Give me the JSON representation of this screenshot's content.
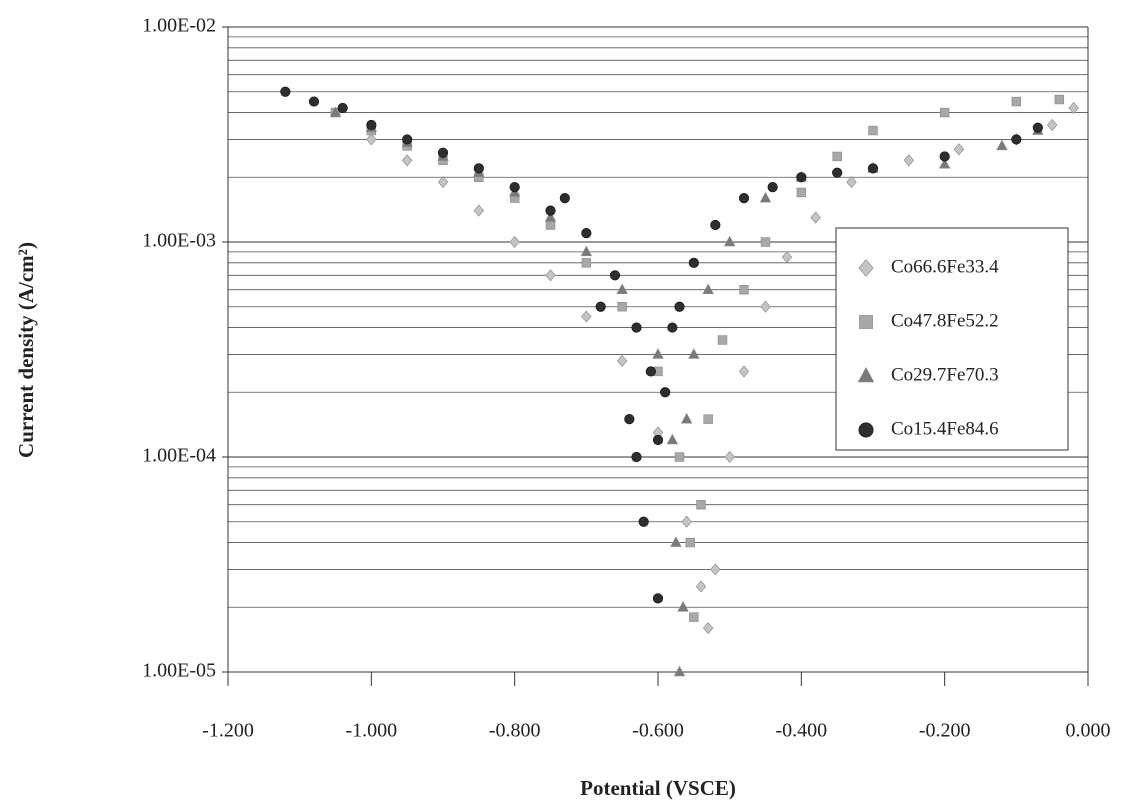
{
  "chart_data": {
    "type": "scatter",
    "x_label": "Potential (VSCE)",
    "y_label": "Current density (A/cm²)",
    "log_y": true,
    "grid": true,
    "legend": "right",
    "xlim": [
      -1.2,
      0.0
    ],
    "xticks": [
      {
        "value": -1.2,
        "label": "-1.200"
      },
      {
        "value": -1.0,
        "label": "-1.000"
      },
      {
        "value": -0.8,
        "label": "-0.800"
      },
      {
        "value": -0.6,
        "label": "-0.600"
      },
      {
        "value": -0.4,
        "label": "-0.400"
      },
      {
        "value": -0.2,
        "label": "-0.200"
      },
      {
        "value": 0.0,
        "label": "0.000"
      }
    ],
    "ylim": [
      1e-05,
      0.01
    ],
    "yticks": [
      {
        "value": 1e-05,
        "label": "1.00E-05"
      },
      {
        "value": 0.0001,
        "label": "1.00E-04"
      },
      {
        "value": 0.001,
        "label": "1.00E-03"
      },
      {
        "value": 0.01,
        "label": "1.00E-02"
      }
    ],
    "yminor": [
      2e-05,
      3e-05,
      4e-05,
      5e-05,
      6e-05,
      7e-05,
      8e-05,
      9e-05,
      0.0002,
      0.0003,
      0.0004,
      0.0005,
      0.0006,
      0.0007,
      0.0008,
      0.0009,
      0.002,
      0.003,
      0.004,
      0.005,
      0.006,
      0.007,
      0.008,
      0.009
    ],
    "series": [
      {
        "name": "Co66.6Fe33.4",
        "color": "#c4c4c4",
        "marker": "diamond",
        "x": [
          -1.0,
          -0.95,
          -0.9,
          -0.85,
          -0.8,
          -0.75,
          -0.7,
          -0.65,
          -0.6,
          -0.56,
          -0.54,
          -0.53,
          -0.52,
          -0.5,
          -0.48,
          -0.45,
          -0.42,
          -0.38,
          -0.33,
          -0.25,
          -0.18,
          -0.1,
          -0.05,
          -0.02
        ],
        "values": [
          0.003,
          0.0024,
          0.0019,
          0.0014,
          0.001,
          0.0007,
          0.00045,
          0.00028,
          0.00013,
          5e-05,
          2.5e-05,
          1.6e-05,
          3e-05,
          0.0001,
          0.00025,
          0.0005,
          0.00085,
          0.0013,
          0.0019,
          0.0024,
          0.0027,
          0.003,
          0.0035,
          0.0042
        ]
      },
      {
        "name": "Co47.8Fe52.2",
        "color": "#a8a8a8",
        "marker": "square",
        "x": [
          -1.05,
          -1.0,
          -0.95,
          -0.9,
          -0.85,
          -0.8,
          -0.75,
          -0.7,
          -0.65,
          -0.6,
          -0.57,
          -0.555,
          -0.55,
          -0.54,
          -0.53,
          -0.51,
          -0.48,
          -0.45,
          -0.4,
          -0.35,
          -0.3,
          -0.2,
          -0.1,
          -0.04
        ],
        "values": [
          0.004,
          0.0033,
          0.0028,
          0.0024,
          0.002,
          0.0016,
          0.0012,
          0.0008,
          0.0005,
          0.00025,
          0.0001,
          4e-05,
          1.8e-05,
          6e-05,
          0.00015,
          0.00035,
          0.0006,
          0.001,
          0.0017,
          0.0025,
          0.0033,
          0.004,
          0.0045,
          0.0046
        ]
      },
      {
        "name": "Co29.7Fe70.3",
        "color": "#7a7a7a",
        "marker": "triangle",
        "x": [
          -1.05,
          -1.0,
          -0.95,
          -0.9,
          -0.85,
          -0.8,
          -0.75,
          -0.7,
          -0.65,
          -0.6,
          -0.58,
          -0.575,
          -0.57,
          -0.565,
          -0.56,
          -0.55,
          -0.53,
          -0.5,
          -0.45,
          -0.4,
          -0.3,
          -0.2,
          -0.12,
          -0.07
        ],
        "values": [
          0.004,
          0.0034,
          0.0029,
          0.0025,
          0.0021,
          0.0017,
          0.0013,
          0.0009,
          0.0006,
          0.0003,
          0.00012,
          4e-05,
          1e-05,
          2e-05,
          0.00015,
          0.0003,
          0.0006,
          0.001,
          0.0016,
          0.002,
          0.0022,
          0.0023,
          0.0028,
          0.0033
        ]
      },
      {
        "name": "Co15.4Fe84.6",
        "color": "#2e2e2e",
        "marker": "circle",
        "x": [
          -1.12,
          -1.08,
          -1.04,
          -1.0,
          -0.95,
          -0.9,
          -0.85,
          -0.8,
          -0.75,
          -0.7,
          -0.66,
          -0.63,
          -0.61,
          -0.6,
          -0.59,
          -0.58,
          -0.57,
          -0.55,
          -0.52,
          -0.48,
          -0.44,
          -0.4,
          -0.35,
          -0.3,
          -0.2,
          -0.1,
          -0.07,
          -0.73,
          -0.68,
          -0.64,
          -0.63,
          -0.62,
          -0.6
        ],
        "values": [
          0.005,
          0.0045,
          0.0042,
          0.0035,
          0.003,
          0.0026,
          0.0022,
          0.0018,
          0.0014,
          0.0011,
          0.0007,
          0.0004,
          0.00025,
          0.00012,
          0.0002,
          0.0004,
          0.0005,
          0.0008,
          0.0012,
          0.0016,
          0.0018,
          0.002,
          0.0021,
          0.0022,
          0.0025,
          0.003,
          0.0034,
          0.0016,
          0.0005,
          0.00015,
          0.0001,
          5e-05,
          2.2e-05
        ]
      }
    ]
  }
}
